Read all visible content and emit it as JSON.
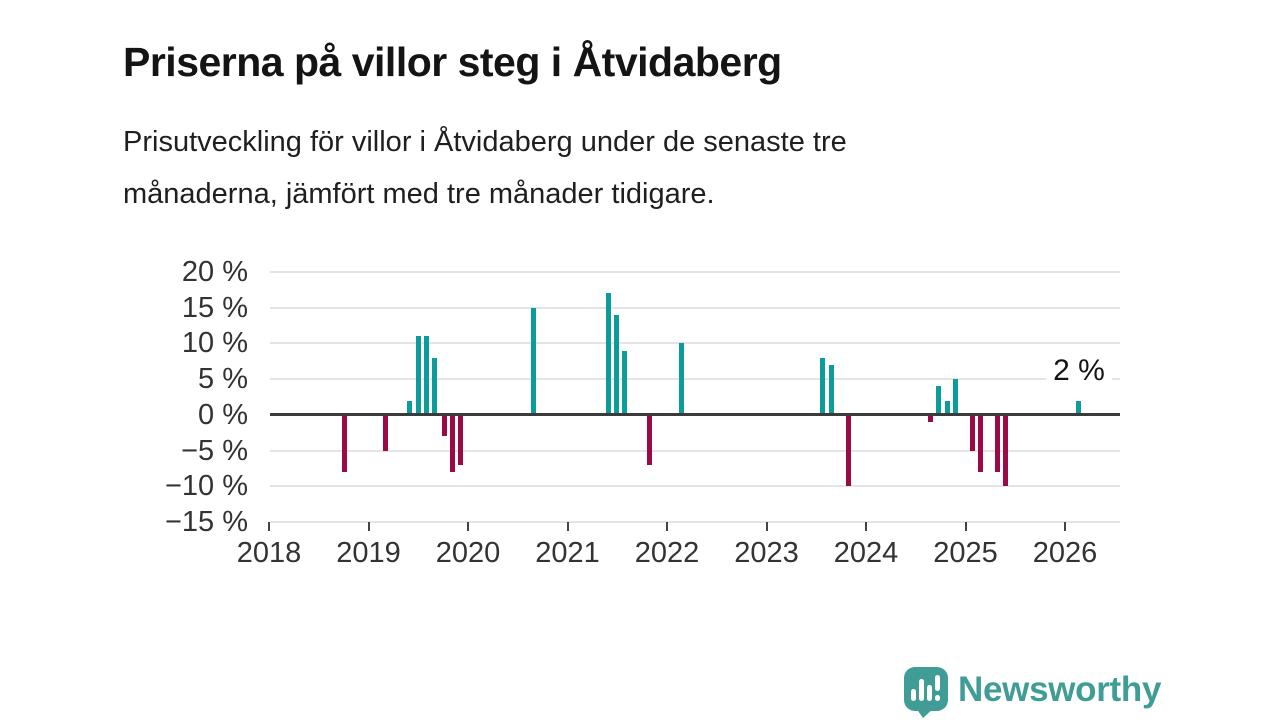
{
  "page": {
    "title": "Priserna på villor steg i Åtvidaberg",
    "subtitle_lines": [
      "Prisutveckling för villor i Åtvidaberg under de senaste tre",
      "månaderna, jämfört med tre månader tidigare."
    ]
  },
  "chart_data": {
    "type": "bar",
    "title": "Priserna på villor steg i Åtvidaberg",
    "xlabel": "",
    "ylabel": "",
    "x_unit": "decimal_year",
    "x": [
      2018.76,
      2019.17,
      2019.41,
      2019.5,
      2019.58,
      2019.66,
      2019.76,
      2019.84,
      2019.92,
      2020.66,
      2021.41,
      2021.49,
      2021.57,
      2021.82,
      2022.15,
      2023.56,
      2023.65,
      2023.82,
      2024.65,
      2024.73,
      2024.82,
      2024.9,
      2025.07,
      2025.15,
      2025.32,
      2025.4,
      2026.14
    ],
    "values": [
      -8,
      -5,
      2,
      11,
      11,
      8,
      -3,
      -8,
      -7,
      15,
      17,
      14,
      9,
      -7,
      10,
      8,
      7,
      -10,
      -1,
      4,
      2,
      5,
      -5,
      -8,
      -8,
      -10,
      2
    ],
    "y_ticks": [
      20,
      15,
      10,
      5,
      0,
      -5,
      -10,
      -15
    ],
    "y_tick_labels": [
      "20 %",
      "15 %",
      "10 %",
      "5 %",
      "0 %",
      "−5 %",
      "−10 %",
      "−15 %"
    ],
    "x_ticks": [
      2018,
      2019,
      2020,
      2021,
      2022,
      2023,
      2024,
      2025,
      2026
    ],
    "x_tick_labels": [
      "2018",
      "2019",
      "2020",
      "2021",
      "2022",
      "2023",
      "2024",
      "2025",
      "2026"
    ],
    "ylim": [
      -15,
      20
    ],
    "xlim": [
      2018,
      2026.55
    ],
    "grid": true,
    "legend": "none",
    "annotation": {
      "text": "2 %",
      "x": 2026.14,
      "value": 2
    },
    "colors": {
      "positive_bar": "#0d9c9c",
      "negative_bar": "#9b0a46",
      "zero_line": "#3b3b3b",
      "gridline": "#e4e4e4",
      "axis_text": "#333333"
    }
  },
  "branding": {
    "name": "Newsworthy",
    "icon": "newsworthy-speech-bubble-chart-icon",
    "color": "#3f9d96"
  }
}
